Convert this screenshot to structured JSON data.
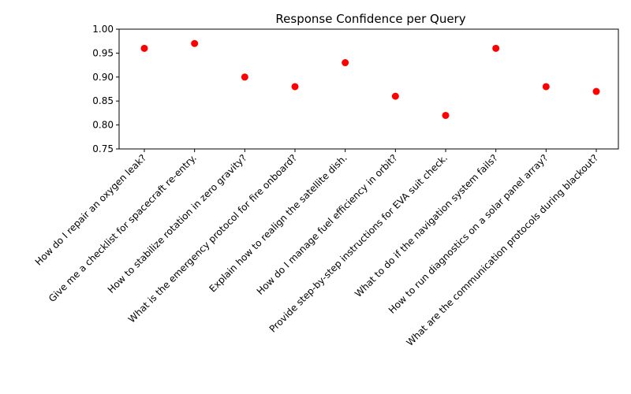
{
  "chart_data": {
    "type": "scatter",
    "title": "Response Confidence per Query",
    "xlabel": "",
    "ylabel": "",
    "categories": [
      "How do I repair an oxygen leak?",
      "Give me a checklist for spacecraft re-entry.",
      "How to stabilize rotation in zero gravity?",
      "What is the emergency protocol for fire onboard?",
      "Explain how to realign the satellite dish.",
      "How do I manage fuel efficiency in orbit?",
      "Provide step-by-step instructions for EVA suit check.",
      "What to do if the navigation system fails?",
      "How to run diagnostics on a solar panel array?",
      "What are the communication protocols during blackout?"
    ],
    "values": [
      0.96,
      0.97,
      0.9,
      0.88,
      0.93,
      0.86,
      0.82,
      0.96,
      0.88,
      0.87
    ],
    "ylim": [
      0.75,
      1.0
    ],
    "yticks": [
      "0.75",
      "0.80",
      "0.85",
      "0.90",
      "0.95",
      "1.00"
    ],
    "marker_color": "#ff0000",
    "grid": false,
    "legend": "none"
  }
}
